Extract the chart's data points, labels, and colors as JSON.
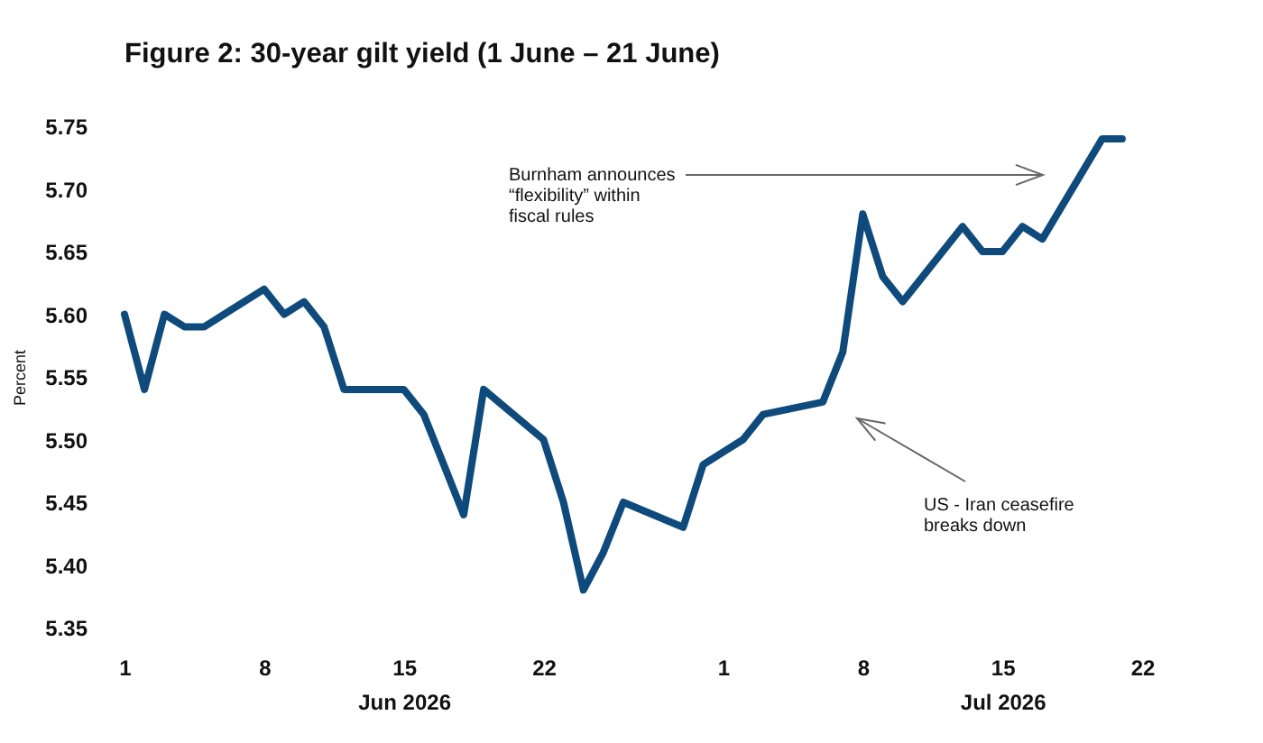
{
  "chart_data": {
    "type": "line",
    "title": "Figure 2: 30-year gilt yield (1 June – 21 June)",
    "ylabel": "Percent",
    "x": [
      "2026-06-01",
      "2026-06-02",
      "2026-06-03",
      "2026-06-04",
      "2026-06-05",
      "2026-06-08",
      "2026-06-09",
      "2026-06-10",
      "2026-06-11",
      "2026-06-12",
      "2026-06-15",
      "2026-06-16",
      "2026-06-17",
      "2026-06-18",
      "2026-06-19",
      "2026-06-22",
      "2026-06-23",
      "2026-06-24",
      "2026-06-25",
      "2026-06-26",
      "2026-06-29",
      "2026-06-30",
      "2026-07-01",
      "2026-07-02",
      "2026-07-03",
      "2026-07-06",
      "2026-07-07",
      "2026-07-08",
      "2026-07-09",
      "2026-07-10",
      "2026-07-13",
      "2026-07-14",
      "2026-07-15",
      "2026-07-16",
      "2026-07-17",
      "2026-07-20",
      "2026-07-21"
    ],
    "series": [
      {
        "color": "#0e4a7c",
        "values": [
          5.6,
          5.54,
          5.6,
          5.59,
          5.59,
          5.62,
          5.6,
          5.61,
          5.59,
          5.54,
          5.54,
          5.52,
          5.48,
          5.44,
          5.54,
          5.5,
          5.45,
          5.38,
          5.41,
          5.45,
          5.43,
          5.48,
          5.49,
          5.5,
          5.52,
          5.53,
          5.57,
          5.68,
          5.63,
          5.61,
          5.67,
          5.65,
          5.65,
          5.67,
          5.66,
          5.74,
          5.74
        ]
      }
    ],
    "xlim": [
      "2026-06-01",
      "2026-07-22"
    ],
    "xticks": [
      {
        "value": "2026-06-01",
        "label": "1"
      },
      {
        "value": "2026-06-08",
        "label": "8"
      },
      {
        "value": "2026-06-15",
        "label": "15\nJun 2026"
      },
      {
        "value": "2026-06-22",
        "label": "22"
      },
      {
        "value": "2026-07-01",
        "label": "1"
      },
      {
        "value": "2026-07-08",
        "label": "8"
      },
      {
        "value": "2026-07-15",
        "label": "15\nJul 2026"
      },
      {
        "value": "2026-07-22",
        "label": "22"
      }
    ],
    "ylim": [
      5.35,
      5.75
    ],
    "yticks": [
      {
        "value": 5.35,
        "label": "5.35"
      },
      {
        "value": 5.4,
        "label": "5.40"
      },
      {
        "value": 5.45,
        "label": "5.45"
      },
      {
        "value": 5.5,
        "label": "5.50"
      },
      {
        "value": 5.55,
        "label": "5.55"
      },
      {
        "value": 5.6,
        "label": "5.60"
      },
      {
        "value": 5.65,
        "label": "5.65"
      },
      {
        "value": 5.7,
        "label": "5.70"
      },
      {
        "value": 5.75,
        "label": "5.75"
      }
    ],
    "annotations": [
      "Burnham announces “flexibility” within fiscal rules",
      "US - Iran ceasefire breaks down"
    ],
    "grid": false,
    "marker": "none",
    "line_style": "solid"
  }
}
